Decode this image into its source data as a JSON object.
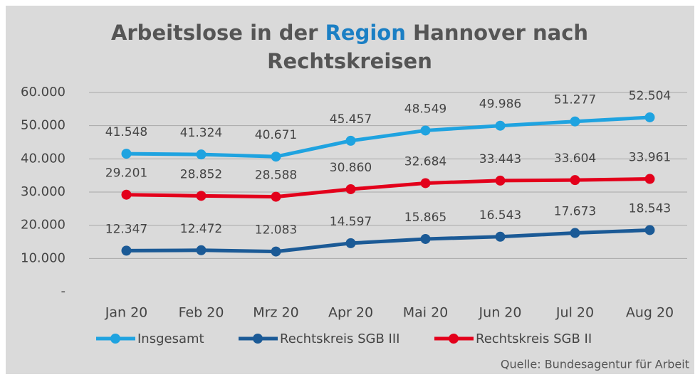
{
  "chart_data": {
    "type": "line",
    "title_parts": [
      "Arbeitslose in der",
      "Region",
      "Hannover nach",
      "Rechtskreisen"
    ],
    "source": "Quelle: Bundesagentur für Arbeit",
    "categories": [
      "Jan 20",
      "Feb 20",
      "Mrz 20",
      "Apr 20",
      "Mai 20",
      "Jun 20",
      "Jul 20",
      "Aug 20"
    ],
    "series": [
      {
        "name": "Insgesamt",
        "color": "#1fa3e0",
        "values": [
          41548,
          41324,
          40671,
          45457,
          48549,
          49986,
          51277,
          52504
        ],
        "value_labels": [
          "41.548",
          "41.324",
          "40.671",
          "45.457",
          "48.549",
          "49.986",
          "51.277",
          "52.504"
        ]
      },
      {
        "name": "Rechtskreis SGB III",
        "color": "#1b5a96",
        "values": [
          12347,
          12472,
          12083,
          14597,
          15865,
          16543,
          17673,
          18543
        ],
        "value_labels": [
          "12.347",
          "12.472",
          "12.083",
          "14.597",
          "15.865",
          "16.543",
          "17.673",
          "18.543"
        ]
      },
      {
        "name": "Rechtskreis SGB II",
        "color": "#e3001b",
        "values": [
          29201,
          28852,
          28588,
          30860,
          32684,
          33443,
          33604,
          33961
        ],
        "value_labels": [
          "29.201",
          "28.852",
          "28.588",
          "30.860",
          "32.684",
          "33.443",
          "33.604",
          "33.961"
        ]
      }
    ],
    "ylim": [
      0,
      60000
    ],
    "yticks": [
      {
        "value": 0,
        "label": "-"
      },
      {
        "value": 10000,
        "label": "10.000"
      },
      {
        "value": 20000,
        "label": "20.000"
      },
      {
        "value": 30000,
        "label": "30.000"
      },
      {
        "value": 40000,
        "label": "40.000"
      },
      {
        "value": 50000,
        "label": "50.000"
      },
      {
        "value": 60000,
        "label": "60.000"
      }
    ],
    "grid": true,
    "legend": "bottom",
    "title_highlight_color": "#1b7fc4"
  }
}
